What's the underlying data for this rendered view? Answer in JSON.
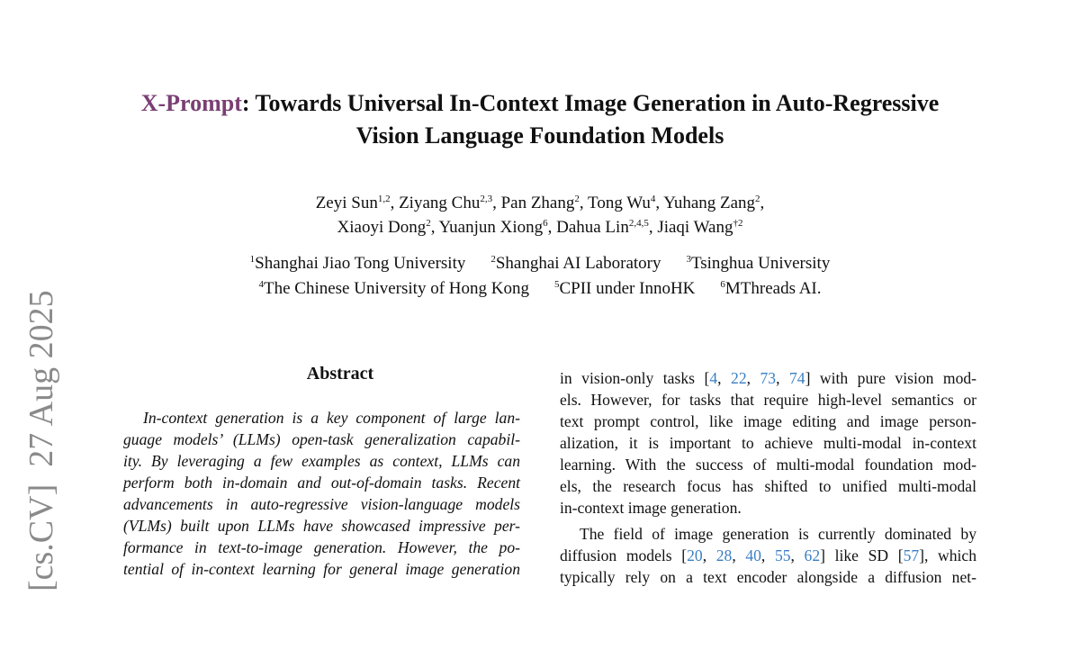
{
  "arxiv_stamp": "[cs.CV]  27 Aug 2025",
  "title": {
    "brand": "X-Prompt",
    "line1": ": Towards Universal In-Context Image Generation in Auto-Regressive",
    "line2": "Vision Language Foundation Models",
    "brand_color": "#7a3f74"
  },
  "authors": {
    "line1": [
      [
        "Zeyi Sun",
        "1,2",
        ", "
      ],
      [
        "Ziyang Chu",
        "2,3",
        ", "
      ],
      [
        "Pan Zhang",
        "2",
        ", "
      ],
      [
        "Tong Wu",
        "4",
        ", "
      ],
      [
        "Yuhang Zang",
        "2",
        ","
      ]
    ],
    "line2": [
      [
        "Xiaoyi Dong",
        "2",
        ", "
      ],
      [
        "Yuanjun Xiong",
        "6",
        ", "
      ],
      [
        "Dahua Lin",
        "2,4,5",
        ", "
      ],
      [
        "Jiaqi Wang",
        "†2",
        ""
      ]
    ]
  },
  "affiliations": {
    "line1": [
      [
        "1",
        "Shanghai Jiao Tong University"
      ],
      [
        "2",
        "Shanghai AI Laboratory"
      ],
      [
        "3",
        "Tsinghua University"
      ]
    ],
    "line2": [
      [
        "4",
        "The Chinese University of Hong Kong"
      ],
      [
        "5",
        "CPII under InnoHK"
      ],
      [
        "6",
        "MThreads AI."
      ]
    ]
  },
  "abstract": {
    "heading": "Abstract",
    "lines": [
      [
        "In-context generation is a key component of large lan-"
      ],
      [
        "guage models’ (LLMs) open-task generalization capabil-"
      ],
      [
        "ity.  By leveraging a few examples as context, LLMs can"
      ],
      [
        "perform both in-domain and out-of-domain tasks.  Recent"
      ],
      [
        "advancements in auto-regressive vision-language models"
      ],
      [
        "(VLMs) built upon LLMs have showcased impressive per-"
      ],
      [
        "formance in text-to-image generation.  However, the po-"
      ],
      [
        "tential of in-context learning for general image generation"
      ]
    ]
  },
  "intro": {
    "lines": [
      [
        "in vision-only tasks [",
        {
          "cite": "4"
        },
        ", ",
        {
          "cite": "22"
        },
        ", ",
        {
          "cite": "73"
        },
        ", ",
        {
          "cite": "74"
        },
        "] with pure vision mod-"
      ],
      [
        "els. However, for tasks that require high-level semantics or"
      ],
      [
        "text prompt control, like image editing and image person-"
      ],
      [
        "alization, it is important to achieve multi-modal in-context"
      ],
      [
        "learning. With the success of multi-modal foundation mod-"
      ],
      [
        "els, the research focus has shifted to unified multi-modal"
      ],
      [
        "in-context image generation."
      ],
      [
        "The field of image generation is currently dominated by"
      ],
      [
        "diffusion models [",
        {
          "cite": "20"
        },
        ", ",
        {
          "cite": "28"
        },
        ", ",
        {
          "cite": "40"
        },
        ", ",
        {
          "cite": "55"
        },
        ", ",
        {
          "cite": "62"
        },
        "] like SD [",
        {
          "cite": "57"
        },
        "], which"
      ],
      [
        "typically rely on a text encoder alongside a diffusion net-"
      ]
    ]
  }
}
